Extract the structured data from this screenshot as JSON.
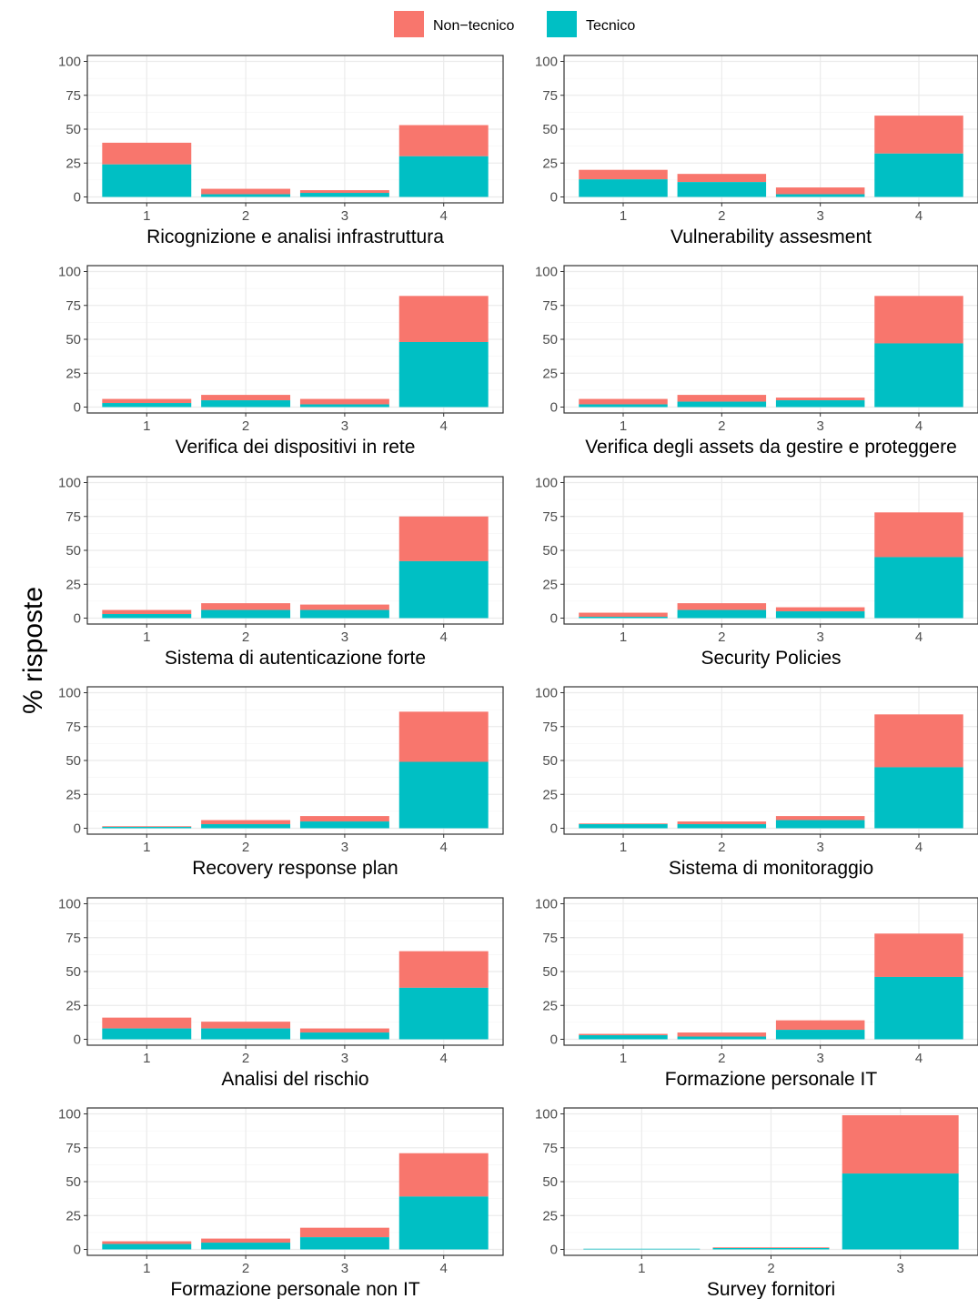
{
  "chart_data": {
    "type": "bar",
    "stacked": true,
    "ylabel": "% risposte",
    "ylim": [
      0,
      100
    ],
    "yticks": [
      0,
      25,
      50,
      75,
      100
    ],
    "grid": true,
    "legend": {
      "placement": "top",
      "entries": [
        {
          "name": "Non−tecnico",
          "color": "#F8766D"
        },
        {
          "name": "Tecnico",
          "color": "#00BFC4"
        }
      ]
    },
    "panels": [
      {
        "title": "Ricognizione e analisi infrastruttura",
        "categories": [
          "1",
          "2",
          "3",
          "4"
        ],
        "series": [
          {
            "name": "Tecnico",
            "values": [
              24,
              2,
              3,
              30
            ]
          },
          {
            "name": "Non−tecnico",
            "values": [
              16,
              4,
              2,
              23
            ]
          }
        ]
      },
      {
        "title": "Vulnerability assesment",
        "categories": [
          "1",
          "2",
          "3",
          "4"
        ],
        "series": [
          {
            "name": "Tecnico",
            "values": [
              13,
              11,
              2,
              32
            ]
          },
          {
            "name": "Non−tecnico",
            "values": [
              7,
              6,
              5,
              28
            ]
          }
        ]
      },
      {
        "title": "Verifica dei dispositivi in rete",
        "categories": [
          "1",
          "2",
          "3",
          "4"
        ],
        "series": [
          {
            "name": "Tecnico",
            "values": [
              3,
              5,
              2,
              48
            ]
          },
          {
            "name": "Non−tecnico",
            "values": [
              3,
              4,
              4,
              34
            ]
          }
        ]
      },
      {
        "title": "Verifica degli assets da gestire e proteggere",
        "categories": [
          "1",
          "2",
          "3",
          "4"
        ],
        "series": [
          {
            "name": "Tecnico",
            "values": [
              2,
              4,
              5,
              47
            ]
          },
          {
            "name": "Non−tecnico",
            "values": [
              4,
              5,
              2,
              35
            ]
          }
        ]
      },
      {
        "title": "Sistema di autenticazione forte",
        "categories": [
          "1",
          "2",
          "3",
          "4"
        ],
        "series": [
          {
            "name": "Tecnico",
            "values": [
              3,
              6,
              6,
              42
            ]
          },
          {
            "name": "Non−tecnico",
            "values": [
              3,
              5,
              4,
              33
            ]
          }
        ]
      },
      {
        "title": "Security Policies",
        "categories": [
          "1",
          "2",
          "3",
          "4"
        ],
        "series": [
          {
            "name": "Tecnico",
            "values": [
              1,
              6,
              5,
              45
            ]
          },
          {
            "name": "Non−tecnico",
            "values": [
              3,
              5,
              3,
              33
            ]
          }
        ]
      },
      {
        "title": "Recovery response plan",
        "categories": [
          "1",
          "2",
          "3",
          "4"
        ],
        "series": [
          {
            "name": "Tecnico",
            "values": [
              1,
              3,
              5,
              49
            ]
          },
          {
            "name": "Non−tecnico",
            "values": [
              0.5,
              3,
              4,
              37
            ]
          }
        ]
      },
      {
        "title": "Sistema di monitoraggio",
        "categories": [
          "1",
          "2",
          "3",
          "4"
        ],
        "series": [
          {
            "name": "Tecnico",
            "values": [
              3,
              3,
              6,
              45
            ]
          },
          {
            "name": "Non−tecnico",
            "values": [
              0.5,
              2,
              3,
              39
            ]
          }
        ]
      },
      {
        "title": "Analisi del rischio",
        "categories": [
          "1",
          "2",
          "3",
          "4"
        ],
        "series": [
          {
            "name": "Tecnico",
            "values": [
              8,
              8,
              5,
              38
            ]
          },
          {
            "name": "Non−tecnico",
            "values": [
              8,
              5,
              3,
              27
            ]
          }
        ]
      },
      {
        "title": "Formazione personale IT",
        "categories": [
          "1",
          "2",
          "3",
          "4"
        ],
        "series": [
          {
            "name": "Tecnico",
            "values": [
              3,
              2,
              7,
              46
            ]
          },
          {
            "name": "Non−tecnico",
            "values": [
              1,
              3,
              7,
              32
            ]
          }
        ]
      },
      {
        "title": "Formazione personale non IT",
        "categories": [
          "1",
          "2",
          "3",
          "4"
        ],
        "series": [
          {
            "name": "Tecnico",
            "values": [
              4,
              5,
              9,
              39
            ]
          },
          {
            "name": "Non−tecnico",
            "values": [
              2,
              3,
              7,
              32
            ]
          }
        ]
      },
      {
        "title": "Survey fornitori",
        "categories": [
          "1",
          "2",
          "3"
        ],
        "series": [
          {
            "name": "Tecnico",
            "values": [
              0.5,
              1,
              56
            ]
          },
          {
            "name": "Non−tecnico",
            "values": [
              0,
              0.5,
              43
            ]
          }
        ]
      }
    ]
  }
}
